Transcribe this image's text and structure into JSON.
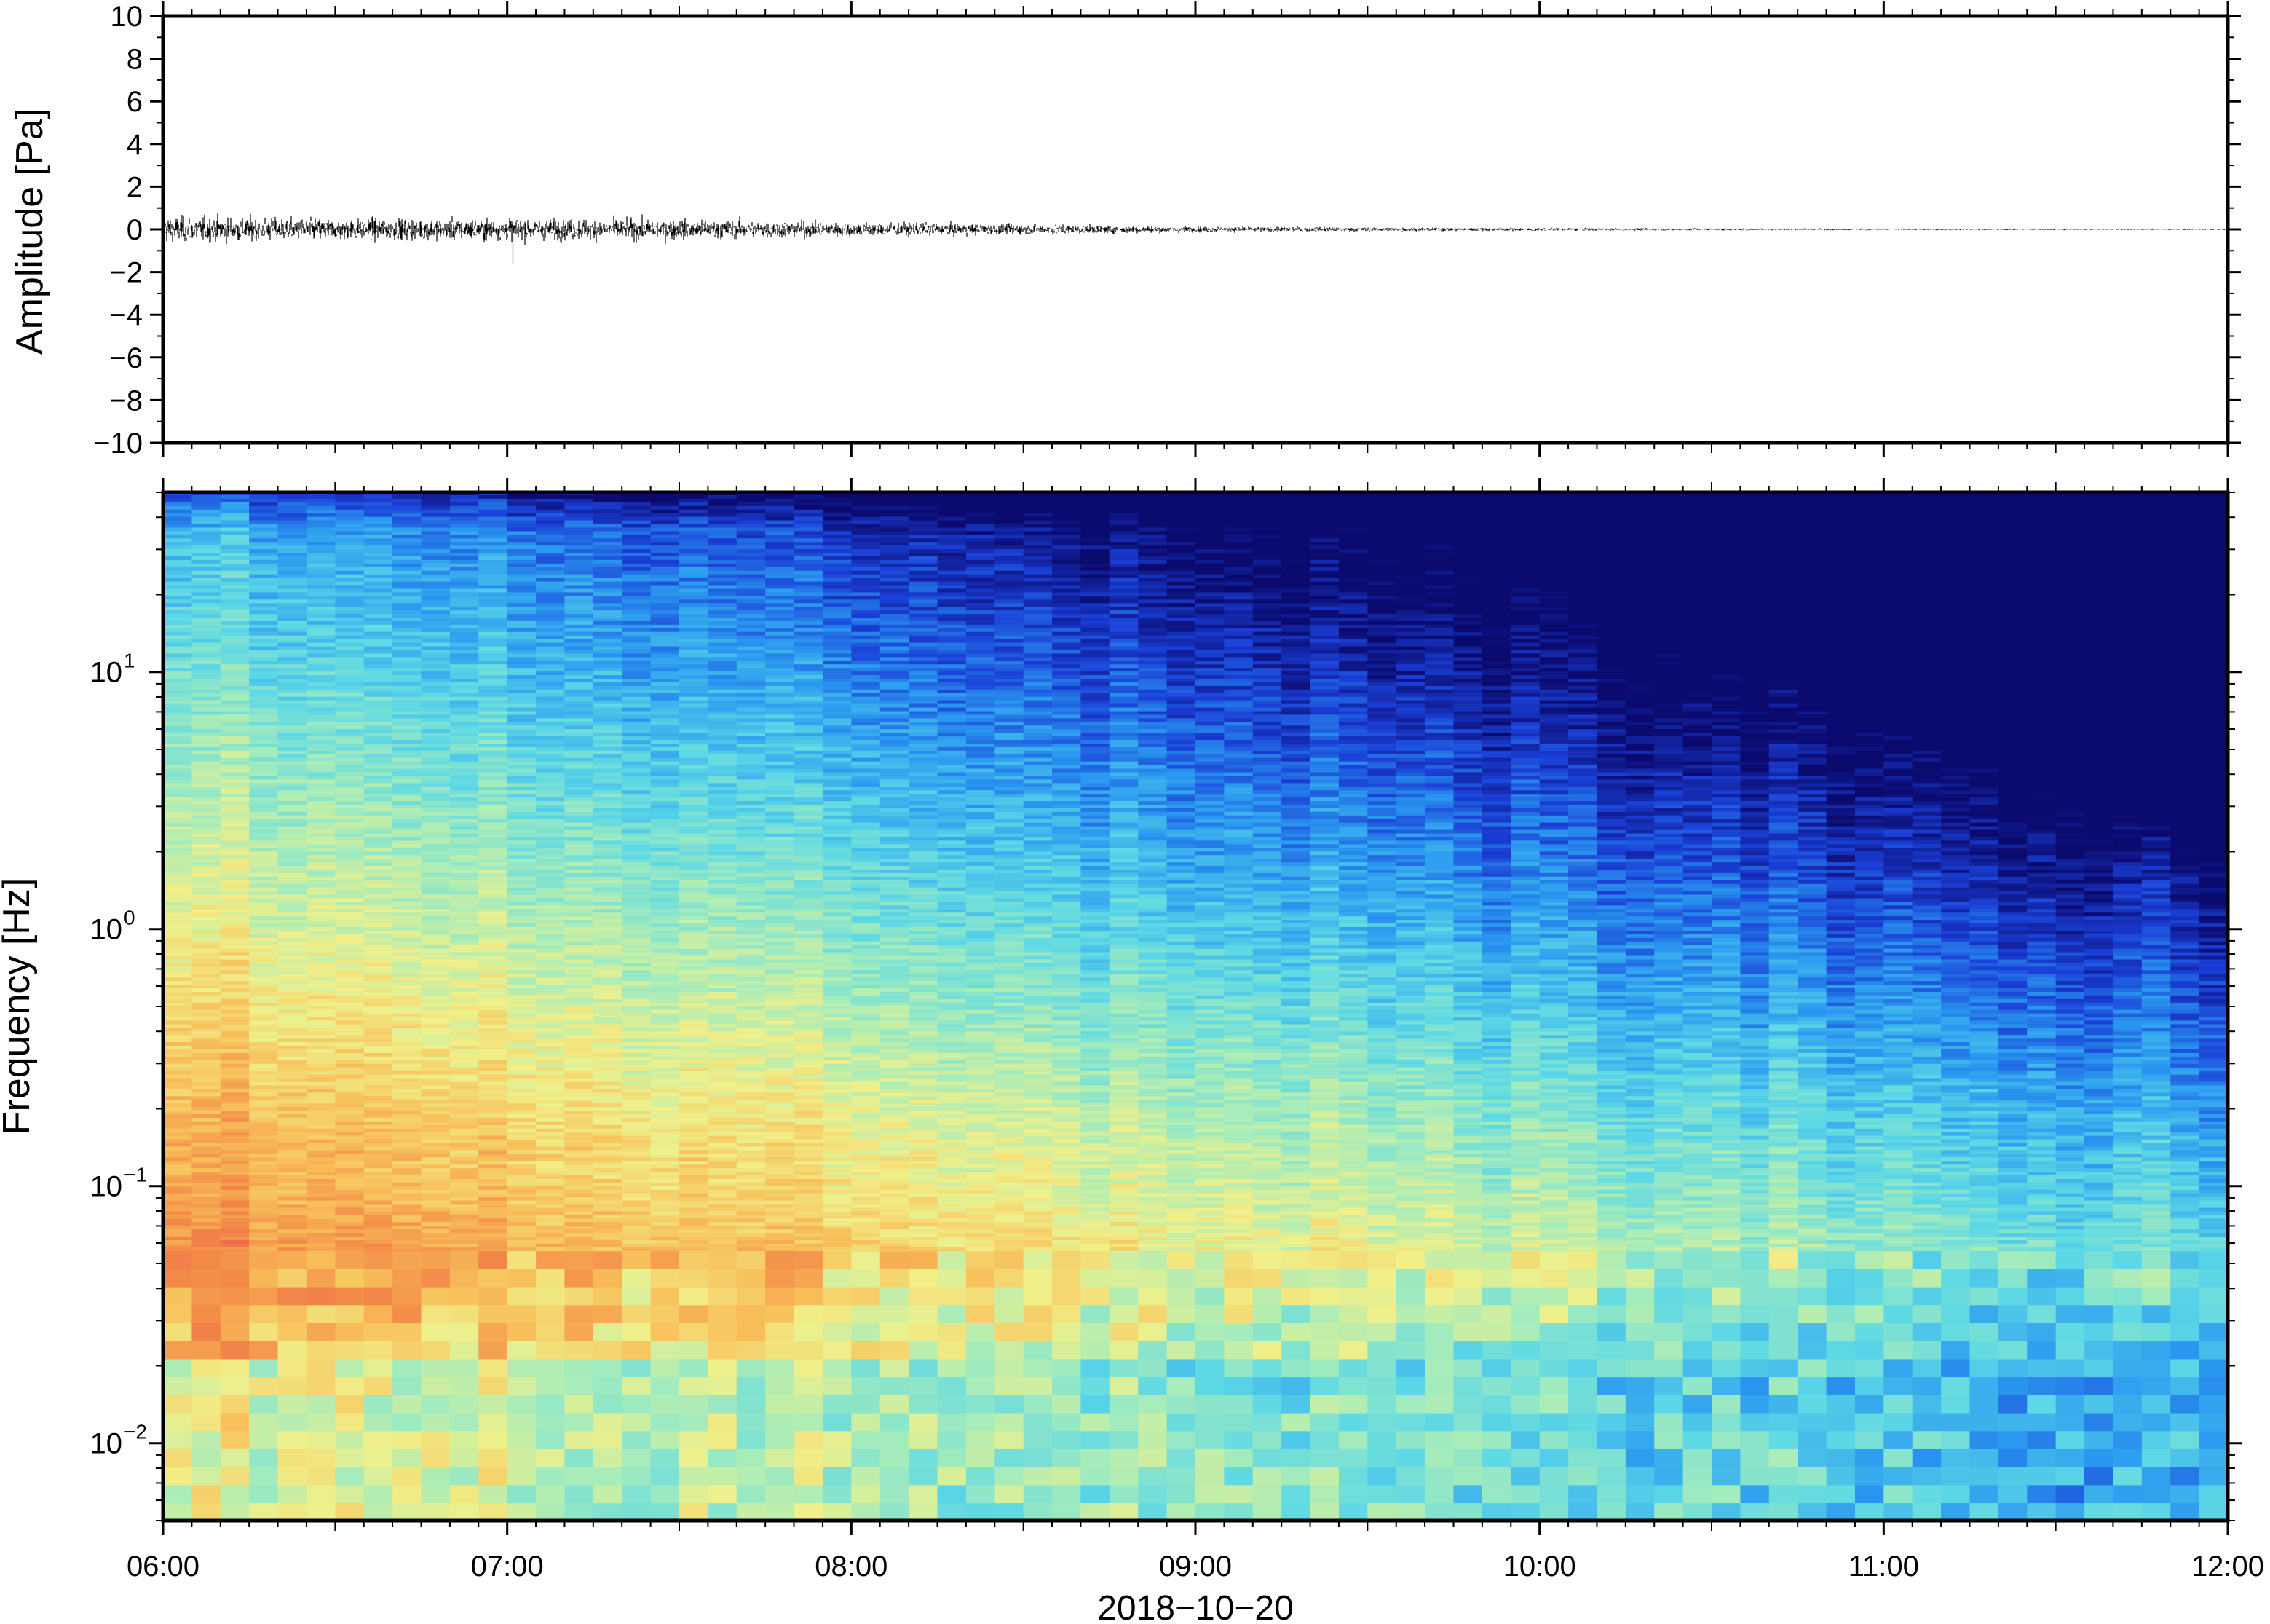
{
  "chart_data": [
    {
      "type": "line",
      "panel": "waveform",
      "ylabel": "Amplitude [Pa]",
      "ylim": [
        -10,
        10
      ],
      "yticks": [
        10,
        8,
        6,
        4,
        2,
        0,
        -2,
        -4,
        -6,
        -8,
        -10
      ],
      "ytick_labels": [
        "10",
        "8",
        "6",
        "4",
        "2",
        "0",
        "−2",
        "−4",
        "−6",
        "−8",
        "−10"
      ],
      "x_time_range": [
        "06:00",
        "12:00"
      ],
      "grid": false,
      "series": [
        {
          "time": [
            "06:00",
            "06:30",
            "07:00",
            "07:30",
            "08:00",
            "08:30",
            "09:00",
            "09:30",
            "10:00",
            "10:30",
            "11:00",
            "11:30",
            "12:00"
          ],
          "envelope_pa": [
            0.9,
            0.75,
            0.75,
            0.7,
            0.5,
            0.35,
            0.2,
            0.14,
            0.1,
            0.08,
            0.06,
            0.05,
            0.05
          ],
          "min_spike_pa": {
            "time": "07:01",
            "value": -1.6
          }
        }
      ]
    },
    {
      "type": "heatmap",
      "panel": "spectrogram",
      "ylabel": "Frequency [Hz]",
      "yscale": "log",
      "ylim": [
        0.005,
        50
      ],
      "yticks": [
        0.01,
        0.1,
        1,
        10
      ],
      "ytick_labels": [
        {
          "base": "10",
          "exp": "−2"
        },
        {
          "base": "10",
          "exp": "−1"
        },
        {
          "base": "10",
          "exp": "0"
        },
        {
          "base": "10",
          "exp": "1"
        }
      ],
      "colormap": "jet-like (dark blue low, red high)",
      "colors": [
        "#0b0a6e",
        "#1a3fd6",
        "#2b9af0",
        "#5cd8e6",
        "#a6ecbb",
        "#f0f08a",
        "#f8c05a",
        "#f38a48",
        "#ec5b4f"
      ],
      "xtick_labels": [
        "06:00",
        "07:00",
        "08:00",
        "09:00",
        "10:00",
        "11:00",
        "12:00"
      ],
      "xlabel": "2018−10−20",
      "grid": false
    }
  ]
}
